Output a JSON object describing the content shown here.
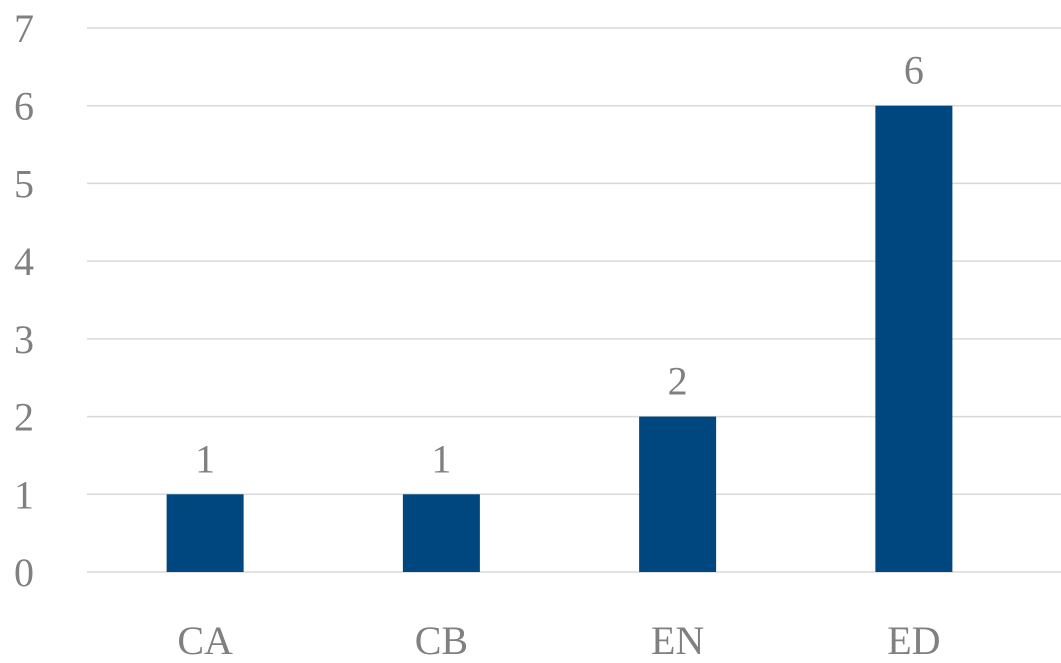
{
  "chart_data": {
    "type": "bar",
    "categories": [
      "CA",
      "CB",
      "EN",
      "ED"
    ],
    "values": [
      1,
      1,
      2,
      6
    ],
    "data_labels": [
      "1",
      "1",
      "2",
      "6"
    ],
    "ylim": [
      0,
      7
    ],
    "yticks": [
      "0",
      "1",
      "2",
      "3",
      "4",
      "5",
      "6",
      "7"
    ],
    "grid": true,
    "legend": "none",
    "bar_color": "#00467F",
    "grid_color": "#D9D9D9",
    "text_color": "#808080"
  }
}
